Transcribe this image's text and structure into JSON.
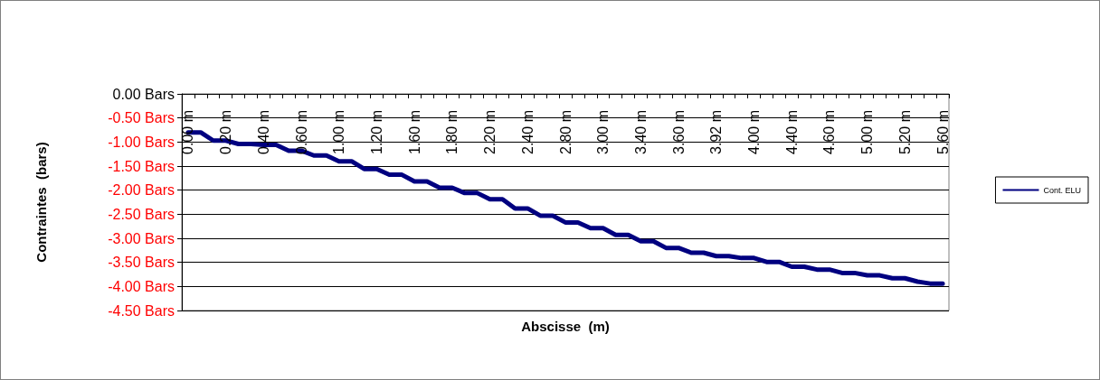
{
  "chart_data": {
    "type": "line",
    "xlabel": "Abscisse  (m)",
    "ylabel": "Contraintes  (bars)",
    "categories": [
      "0.00 m",
      null,
      null,
      "0.20 m",
      null,
      null,
      "0.40 m",
      null,
      null,
      "0.60 m",
      null,
      null,
      "1.00 m",
      null,
      null,
      "1.20 m",
      null,
      null,
      "1.60 m",
      null,
      null,
      "1.80 m",
      null,
      null,
      "2.20 m",
      null,
      null,
      "2.40 m",
      null,
      null,
      "2.80 m",
      null,
      null,
      "3.00 m",
      null,
      null,
      "3.40 m",
      null,
      null,
      "3.60 m",
      null,
      null,
      "3.92 m",
      null,
      null,
      "4.00 m",
      null,
      null,
      "4.40 m",
      null,
      null,
      "4.60 m",
      null,
      null,
      "5.00 m",
      null,
      null,
      "5.20 m",
      null,
      null,
      "5.60 m"
    ],
    "series": [
      {
        "name": "Cont. ELU",
        "color": "#000080",
        "values": [
          -0.8,
          -0.8,
          -0.97,
          -0.97,
          -1.04,
          -1.04,
          -1.06,
          -1.06,
          -1.18,
          -1.18,
          -1.28,
          -1.28,
          -1.4,
          -1.4,
          -1.56,
          -1.56,
          -1.68,
          -1.68,
          -1.82,
          -1.82,
          -1.95,
          -1.95,
          -2.06,
          -2.06,
          -2.19,
          -2.19,
          -2.38,
          -2.38,
          -2.53,
          -2.53,
          -2.67,
          -2.67,
          -2.79,
          -2.79,
          -2.93,
          -2.93,
          -3.06,
          -3.06,
          -3.2,
          -3.2,
          -3.3,
          -3.3,
          -3.37,
          -3.37,
          -3.41,
          -3.41,
          -3.49,
          -3.49,
          -3.59,
          -3.59,
          -3.65,
          -3.65,
          -3.72,
          -3.72,
          -3.77,
          -3.77,
          -3.83,
          -3.83,
          -3.9,
          -3.94,
          -3.94
        ]
      }
    ],
    "ylim": [
      -4.5,
      0
    ],
    "yticks": [
      {
        "value": -4.5,
        "label": "-4.50 Bars"
      },
      {
        "value": -4,
        "label": "-4.00 Bars"
      },
      {
        "value": -3.5,
        "label": "-3.50 Bars"
      },
      {
        "value": -3,
        "label": "-3.00 Bars"
      },
      {
        "value": -2.5,
        "label": "-2.50 Bars"
      },
      {
        "value": -2,
        "label": "-2.00 Bars"
      },
      {
        "value": -1.5,
        "label": "-1.50 Bars"
      },
      {
        "value": -1,
        "label": "-1.00 Bars"
      },
      {
        "value": -0.5,
        "label": "-0.50 Bars"
      },
      {
        "value": 0,
        "label": "0.00 Bars"
      }
    ],
    "grid": "y",
    "legend": "right",
    "marker": "none",
    "line_style": "solid"
  }
}
